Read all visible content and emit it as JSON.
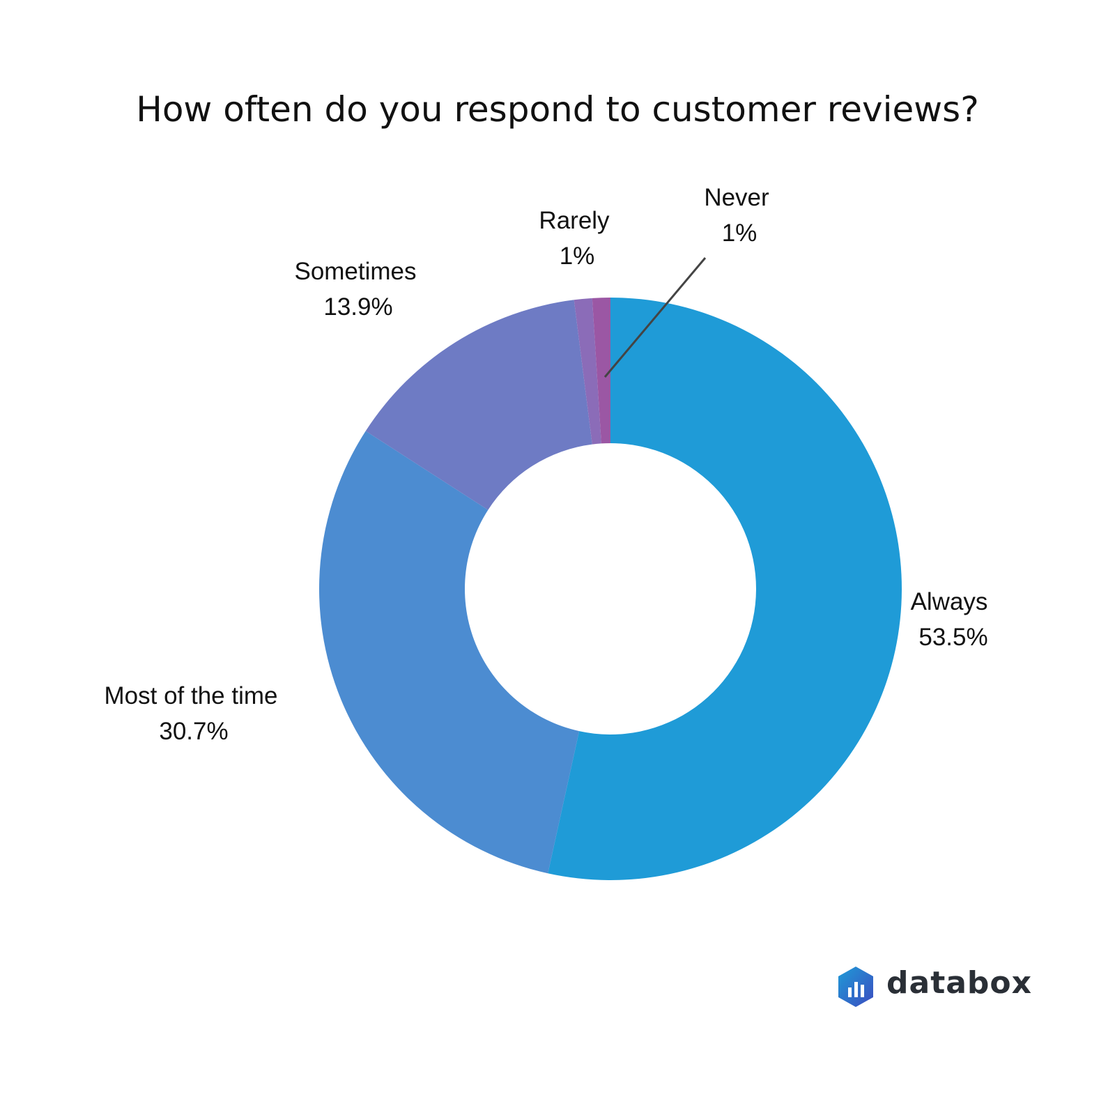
{
  "chart_data": {
    "type": "donut",
    "title": "How often do you respond to customer reviews?",
    "series": [
      {
        "name": "Always",
        "value": 53.5,
        "label": "53.5%",
        "color": "#1f9bd7"
      },
      {
        "name": "Most of the time",
        "value": 30.7,
        "label": "30.7%",
        "color": "#4c8cd1"
      },
      {
        "name": "Sometimes",
        "value": 13.9,
        "label": "13.9%",
        "color": "#6e7bc4"
      },
      {
        "name": "Rarely",
        "value": 1,
        "label": "1%",
        "color": "#8b6cb8"
      },
      {
        "name": "Never",
        "value": 1,
        "label": "1%",
        "color": "#9b57a4"
      }
    ]
  },
  "brand": {
    "logo_text": "databox",
    "logo_colors": [
      "#3b4cc0",
      "#1f9bd7"
    ]
  }
}
